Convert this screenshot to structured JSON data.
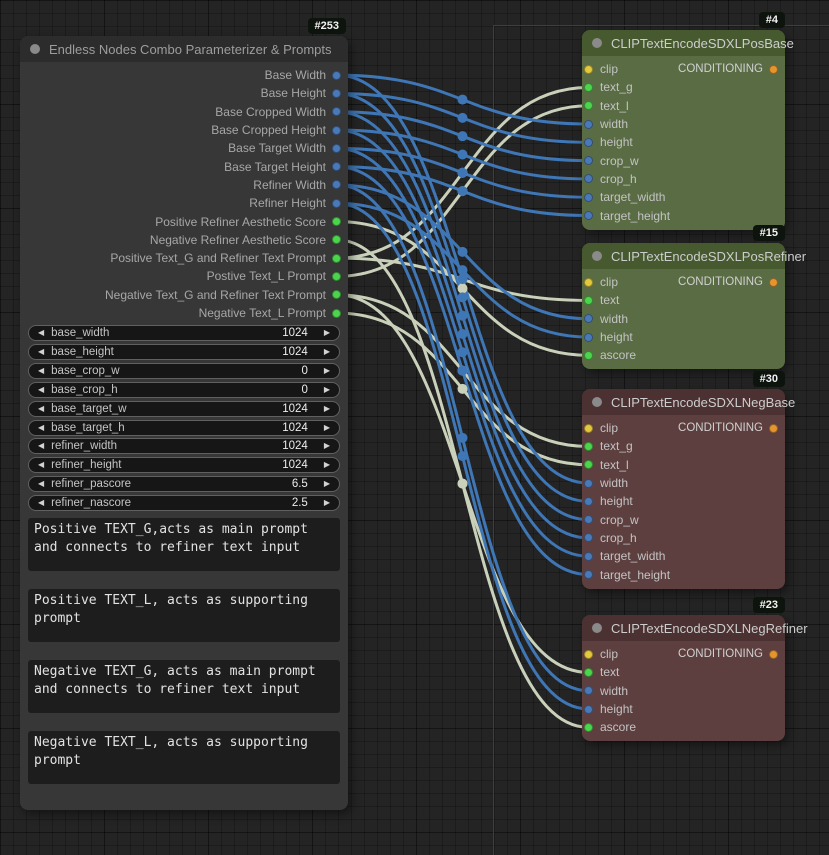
{
  "graph": {
    "left_node": {
      "id_badge": "#253",
      "title": "Endless Nodes Combo Parameterizer & Prompts",
      "outputs": [
        {
          "label": "Base Width",
          "type": "INT"
        },
        {
          "label": "Base Height",
          "type": "INT"
        },
        {
          "label": "Base Cropped Width",
          "type": "INT"
        },
        {
          "label": "Base Cropped Height",
          "type": "INT"
        },
        {
          "label": "Base Target Width",
          "type": "INT"
        },
        {
          "label": "Base Target Height",
          "type": "INT"
        },
        {
          "label": "Refiner Width",
          "type": "INT"
        },
        {
          "label": "Refiner Height",
          "type": "INT"
        },
        {
          "label": "Positive Refiner Aesthetic Score",
          "type": "FLOAT"
        },
        {
          "label": "Negative Refiner Aesthetic Score",
          "type": "FLOAT"
        },
        {
          "label": "Positive Text_G and Refiner Text Prompt",
          "type": "STRING"
        },
        {
          "label": "Postive Text_L Prompt",
          "type": "STRING"
        },
        {
          "label": "Negative Text_G and Refiner Text Prompt",
          "type": "STRING"
        },
        {
          "label": "Negative Text_L Prompt",
          "type": "STRING"
        }
      ],
      "widgets": [
        {
          "name": "base_width",
          "value": "1024"
        },
        {
          "name": "base_height",
          "value": "1024"
        },
        {
          "name": "base_crop_w",
          "value": "0"
        },
        {
          "name": "base_crop_h",
          "value": "0"
        },
        {
          "name": "base_target_w",
          "value": "1024"
        },
        {
          "name": "base_target_h",
          "value": "1024"
        },
        {
          "name": "refiner_width",
          "value": "1024"
        },
        {
          "name": "refiner_height",
          "value": "1024"
        },
        {
          "name": "refiner_pascore",
          "value": "6.5"
        },
        {
          "name": "refiner_nascore",
          "value": "2.5"
        }
      ],
      "text_widgets": [
        "Positive TEXT_G,acts as main prompt and connects to refiner text input",
        "Positive TEXT_L, acts as supporting prompt",
        "Negative TEXT_G, acts as main prompt and connects to refiner text input",
        "Negative TEXT_L, acts as supporting prompt"
      ],
      "arrow_left": "◀",
      "arrow_right": "▶"
    },
    "clip_nodes": [
      {
        "id_badge": "#4",
        "title": "CLIPTextEncodeSDXLPosBase",
        "theme": "green",
        "inputs": [
          {
            "name": "clip",
            "type": "CLIP"
          },
          {
            "name": "text_g",
            "type": "STRING"
          },
          {
            "name": "text_l",
            "type": "STRING"
          },
          {
            "name": "width",
            "type": "INT"
          },
          {
            "name": "height",
            "type": "INT"
          },
          {
            "name": "crop_w",
            "type": "INT"
          },
          {
            "name": "crop_h",
            "type": "INT"
          },
          {
            "name": "target_width",
            "type": "INT"
          },
          {
            "name": "target_height",
            "type": "INT"
          }
        ],
        "output": {
          "name": "CONDITIONING",
          "type": "CONDITIONING"
        }
      },
      {
        "id_badge": "#15",
        "title": "CLIPTextEncodeSDXLPosRefiner",
        "theme": "green",
        "inputs": [
          {
            "name": "clip",
            "type": "CLIP"
          },
          {
            "name": "text",
            "type": "STRING"
          },
          {
            "name": "width",
            "type": "INT"
          },
          {
            "name": "height",
            "type": "INT"
          },
          {
            "name": "ascore",
            "type": "FLOAT"
          }
        ],
        "output": {
          "name": "CONDITIONING",
          "type": "CONDITIONING"
        }
      },
      {
        "id_badge": "#30",
        "title": "CLIPTextEncodeSDXLNegBase",
        "theme": "red",
        "inputs": [
          {
            "name": "clip",
            "type": "CLIP"
          },
          {
            "name": "text_g",
            "type": "STRING"
          },
          {
            "name": "text_l",
            "type": "STRING"
          },
          {
            "name": "width",
            "type": "INT"
          },
          {
            "name": "height",
            "type": "INT"
          },
          {
            "name": "crop_w",
            "type": "INT"
          },
          {
            "name": "crop_h",
            "type": "INT"
          },
          {
            "name": "target_width",
            "type": "INT"
          },
          {
            "name": "target_height",
            "type": "INT"
          }
        ],
        "output": {
          "name": "CONDITIONING",
          "type": "CONDITIONING"
        }
      },
      {
        "id_badge": "#23",
        "title": "CLIPTextEncodeSDXLNegRefiner",
        "theme": "red",
        "inputs": [
          {
            "name": "clip",
            "type": "CLIP"
          },
          {
            "name": "text",
            "type": "STRING"
          },
          {
            "name": "width",
            "type": "INT"
          },
          {
            "name": "height",
            "type": "INT"
          },
          {
            "name": "ascore",
            "type": "FLOAT"
          }
        ],
        "output": {
          "name": "CONDITIONING",
          "type": "CONDITIONING"
        }
      }
    ],
    "links": [
      {
        "from": 10,
        "to_node": 0,
        "to_input": 1
      },
      {
        "from": 10,
        "to_node": 1,
        "to_input": 1
      },
      {
        "from": 11,
        "to_node": 0,
        "to_input": 2
      },
      {
        "from": 12,
        "to_node": 2,
        "to_input": 1
      },
      {
        "from": 12,
        "to_node": 3,
        "to_input": 1
      },
      {
        "from": 13,
        "to_node": 2,
        "to_input": 2
      },
      {
        "from": 8,
        "to_node": 1,
        "to_input": 4
      },
      {
        "from": 9,
        "to_node": 3,
        "to_input": 4
      },
      {
        "from": 0,
        "to_node": 0,
        "to_input": 3
      },
      {
        "from": 1,
        "to_node": 0,
        "to_input": 4
      },
      {
        "from": 2,
        "to_node": 0,
        "to_input": 5
      },
      {
        "from": 3,
        "to_node": 0,
        "to_input": 6
      },
      {
        "from": 4,
        "to_node": 0,
        "to_input": 7
      },
      {
        "from": 5,
        "to_node": 0,
        "to_input": 8
      },
      {
        "from": 0,
        "to_node": 2,
        "to_input": 3
      },
      {
        "from": 1,
        "to_node": 2,
        "to_input": 4
      },
      {
        "from": 2,
        "to_node": 2,
        "to_input": 5
      },
      {
        "from": 3,
        "to_node": 2,
        "to_input": 6
      },
      {
        "from": 4,
        "to_node": 2,
        "to_input": 7
      },
      {
        "from": 5,
        "to_node": 2,
        "to_input": 8
      },
      {
        "from": 6,
        "to_node": 1,
        "to_input": 2
      },
      {
        "from": 7,
        "to_node": 1,
        "to_input": 3
      },
      {
        "from": 6,
        "to_node": 3,
        "to_input": 2
      },
      {
        "from": 7,
        "to_node": 3,
        "to_input": 3
      }
    ],
    "colors": {
      "slot_INT": "#4a79b8",
      "slot_FLOAT": "#4cd54c",
      "slot_STRING": "#4cd54c",
      "slot_CLIP": "#e3c83e",
      "slot_CONDITIONING": "#e6952e",
      "wire_INT": "#3f76b5",
      "wire_FLOAT": "#c9d1ba",
      "wire_STRING": "#c9d1ba",
      "selection_outline": "#2e3d6b"
    }
  }
}
